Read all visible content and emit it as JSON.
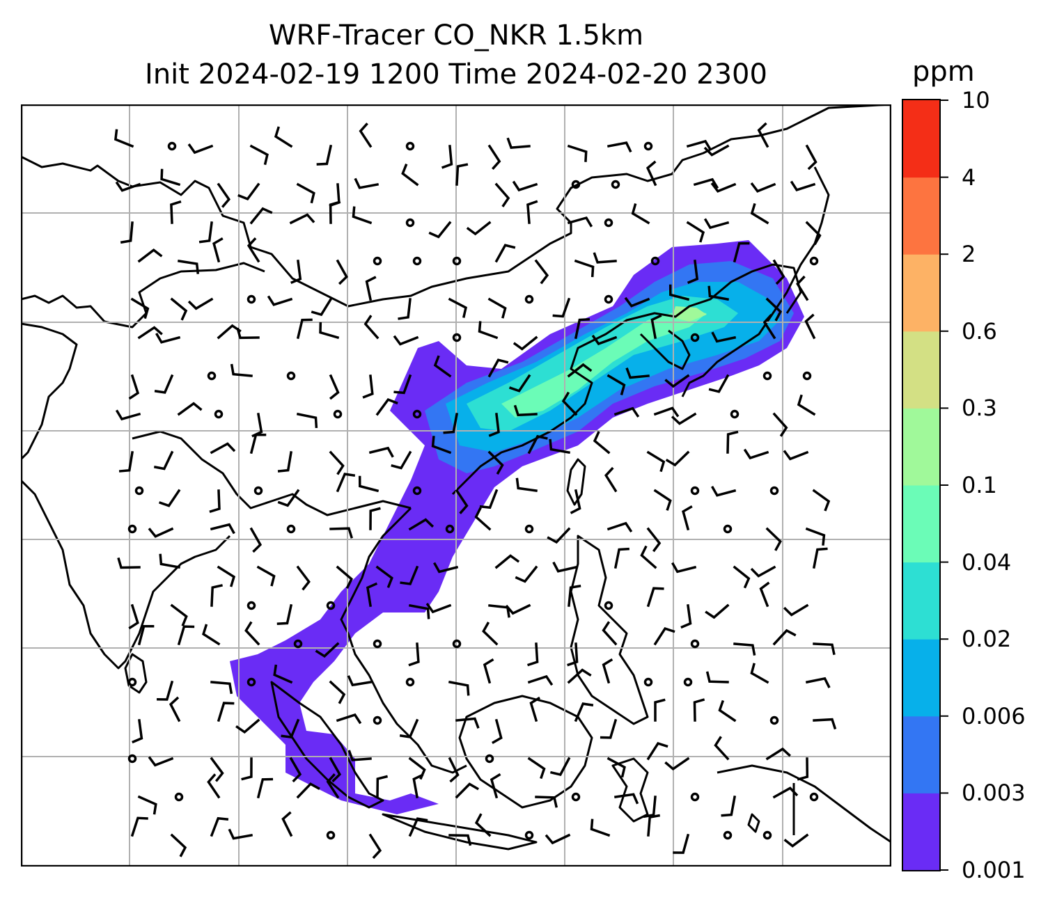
{
  "map": {
    "title": "WRF-Tracer CO_NKR 1.5km",
    "subtitle": "Init 2024-02-19 1200 Time 2024-02-20 2300",
    "colorbar": {
      "unit": "ppm",
      "levels": [
        "0.001",
        "0.003",
        "0.006",
        "0.02",
        "0.04",
        "0.1",
        "0.3",
        "0.6",
        "2",
        "4",
        "10"
      ],
      "colors": [
        "#6a2cf5",
        "#3376f3",
        "#07b0ea",
        "#2ddfd3",
        "#6bfcb7",
        "#a0f99a",
        "#d3e084",
        "#fdb265",
        "#fd7440",
        "#f42e17"
      ]
    },
    "style": {
      "coastline_color": "#000000",
      "grid_color": "#b0b0b0",
      "barb_color": "#000000",
      "gridlines": true
    }
  }
}
